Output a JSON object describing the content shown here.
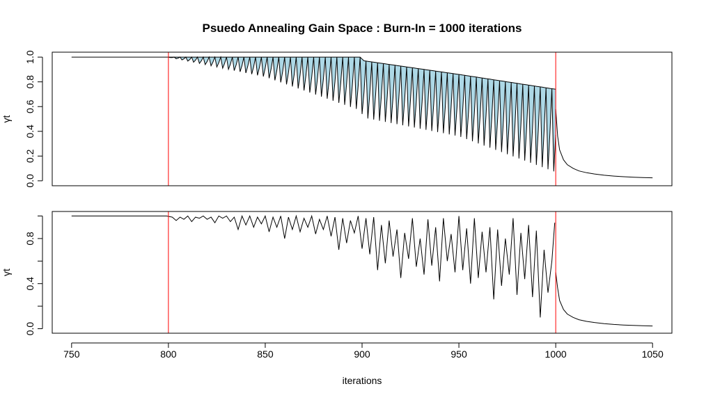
{
  "chart_data": {
    "type": "line",
    "title": "Psuedo Annealing Gain Space : Burn-In = 1000 iterations",
    "xlabel": "iterations",
    "xlim": [
      740,
      1060
    ],
    "x_ticks": [
      "750",
      "800",
      "850",
      "900",
      "950",
      "1000",
      "1050"
    ],
    "vlines": [
      800,
      1000
    ],
    "colors": {
      "fill": "#add8e6",
      "vline": "#ff0000",
      "line": "#000000"
    },
    "panels": [
      {
        "ylabel": "γt",
        "ylim": [
          -0.04,
          1.04
        ],
        "y_ticks": [
          "0.0",
          "0.2",
          "0.4",
          "0.6",
          "0.8",
          "1.0"
        ],
        "series": [
          {
            "type": "area",
            "x_range": [
              800,
              1000
            ],
            "x": [
              800,
              850,
              899,
              901,
              950,
              1000
            ],
            "upper": [
              1.0,
              1.0,
              1.0,
              0.97,
              0.86,
              0.74
            ],
            "lower": [
              1.0,
              0.84,
              0.57,
              0.51,
              0.36,
              0.07
            ],
            "period": 3,
            "phase_peak": 0,
            "phase_trough": 1
          },
          {
            "type": "line",
            "x": [
              750,
              800
            ],
            "y": [
              1.0,
              1.0
            ]
          },
          {
            "type": "line",
            "x": [
              1000,
              1001,
              1002,
              1004,
              1006,
              1009,
              1012,
              1016,
              1020,
              1025,
              1030,
              1035,
              1040,
              1045,
              1050
            ],
            "y": [
              0.58,
              0.36,
              0.25,
              0.17,
              0.13,
              0.1,
              0.08,
              0.065,
              0.055,
              0.045,
              0.038,
              0.033,
              0.029,
              0.026,
              0.024
            ]
          }
        ]
      },
      {
        "ylabel": "γt",
        "ylim": [
          -0.04,
          1.04
        ],
        "y_ticks": [
          "0.0",
          "0.4",
          "0.8"
        ],
        "minor_ticks": [
          0.2,
          0.6,
          1.0
        ],
        "series": [
          {
            "type": "line",
            "x": [
              750,
              799,
              802,
              804,
              806,
              808,
              810,
              812,
              814,
              816,
              818,
              820,
              822,
              824,
              826,
              828,
              830,
              832,
              834,
              836,
              838,
              840,
              842,
              844,
              846,
              848,
              850,
              852,
              854,
              856,
              858,
              860,
              862,
              864,
              866,
              868,
              870,
              872,
              874,
              876,
              878,
              880,
              882,
              884,
              886,
              888,
              890,
              892,
              894,
              896,
              898,
              900,
              902,
              904,
              906,
              908,
              910,
              912,
              914,
              916,
              918,
              920,
              922,
              924,
              926,
              928,
              930,
              932,
              934,
              936,
              938,
              940,
              942,
              944,
              946,
              948,
              950,
              952,
              954,
              956,
              958,
              960,
              962,
              964,
              966,
              968,
              970,
              972,
              974,
              976,
              978,
              980,
              982,
              984,
              986,
              988,
              990,
              992,
              994,
              996,
              998,
              999.5
            ],
            "y": [
              1.0,
              1.0,
              0.99,
              0.96,
              0.99,
              0.97,
              1.0,
              0.95,
              0.99,
              0.98,
              1.0,
              0.97,
              0.99,
              0.94,
              1.0,
              0.98,
              1.0,
              0.95,
              0.99,
              0.88,
              1.0,
              0.92,
              1.0,
              0.9,
              0.99,
              0.93,
              1.0,
              0.86,
              0.99,
              0.9,
              1.0,
              0.8,
              0.99,
              0.88,
              1.0,
              0.86,
              0.98,
              0.9,
              1.0,
              0.84,
              0.97,
              0.88,
              1.0,
              0.82,
              0.99,
              0.7,
              0.98,
              0.76,
              0.96,
              0.85,
              1.0,
              0.71,
              0.98,
              0.66,
              0.99,
              0.52,
              0.92,
              0.58,
              0.96,
              0.64,
              0.88,
              0.45,
              0.85,
              0.62,
              0.98,
              0.55,
              0.8,
              0.48,
              0.97,
              0.56,
              0.9,
              0.42,
              0.98,
              0.6,
              0.84,
              0.5,
              1.0,
              0.52,
              0.89,
              0.4,
              0.98,
              0.45,
              0.86,
              0.5,
              0.9,
              0.26,
              0.88,
              0.38,
              0.8,
              0.48,
              0.98,
              0.3,
              0.85,
              0.44,
              0.92,
              0.28,
              0.87,
              0.1,
              0.7,
              0.32,
              0.6,
              0.94
            ]
          },
          {
            "type": "line",
            "x": [
              1000,
              1001,
              1002,
              1004,
              1006,
              1009,
              1012,
              1016,
              1020,
              1025,
              1030,
              1035,
              1040,
              1045,
              1050
            ],
            "y": [
              0.5,
              0.36,
              0.25,
              0.17,
              0.13,
              0.1,
              0.08,
              0.065,
              0.055,
              0.045,
              0.038,
              0.033,
              0.029,
              0.026,
              0.024
            ]
          }
        ]
      }
    ]
  }
}
